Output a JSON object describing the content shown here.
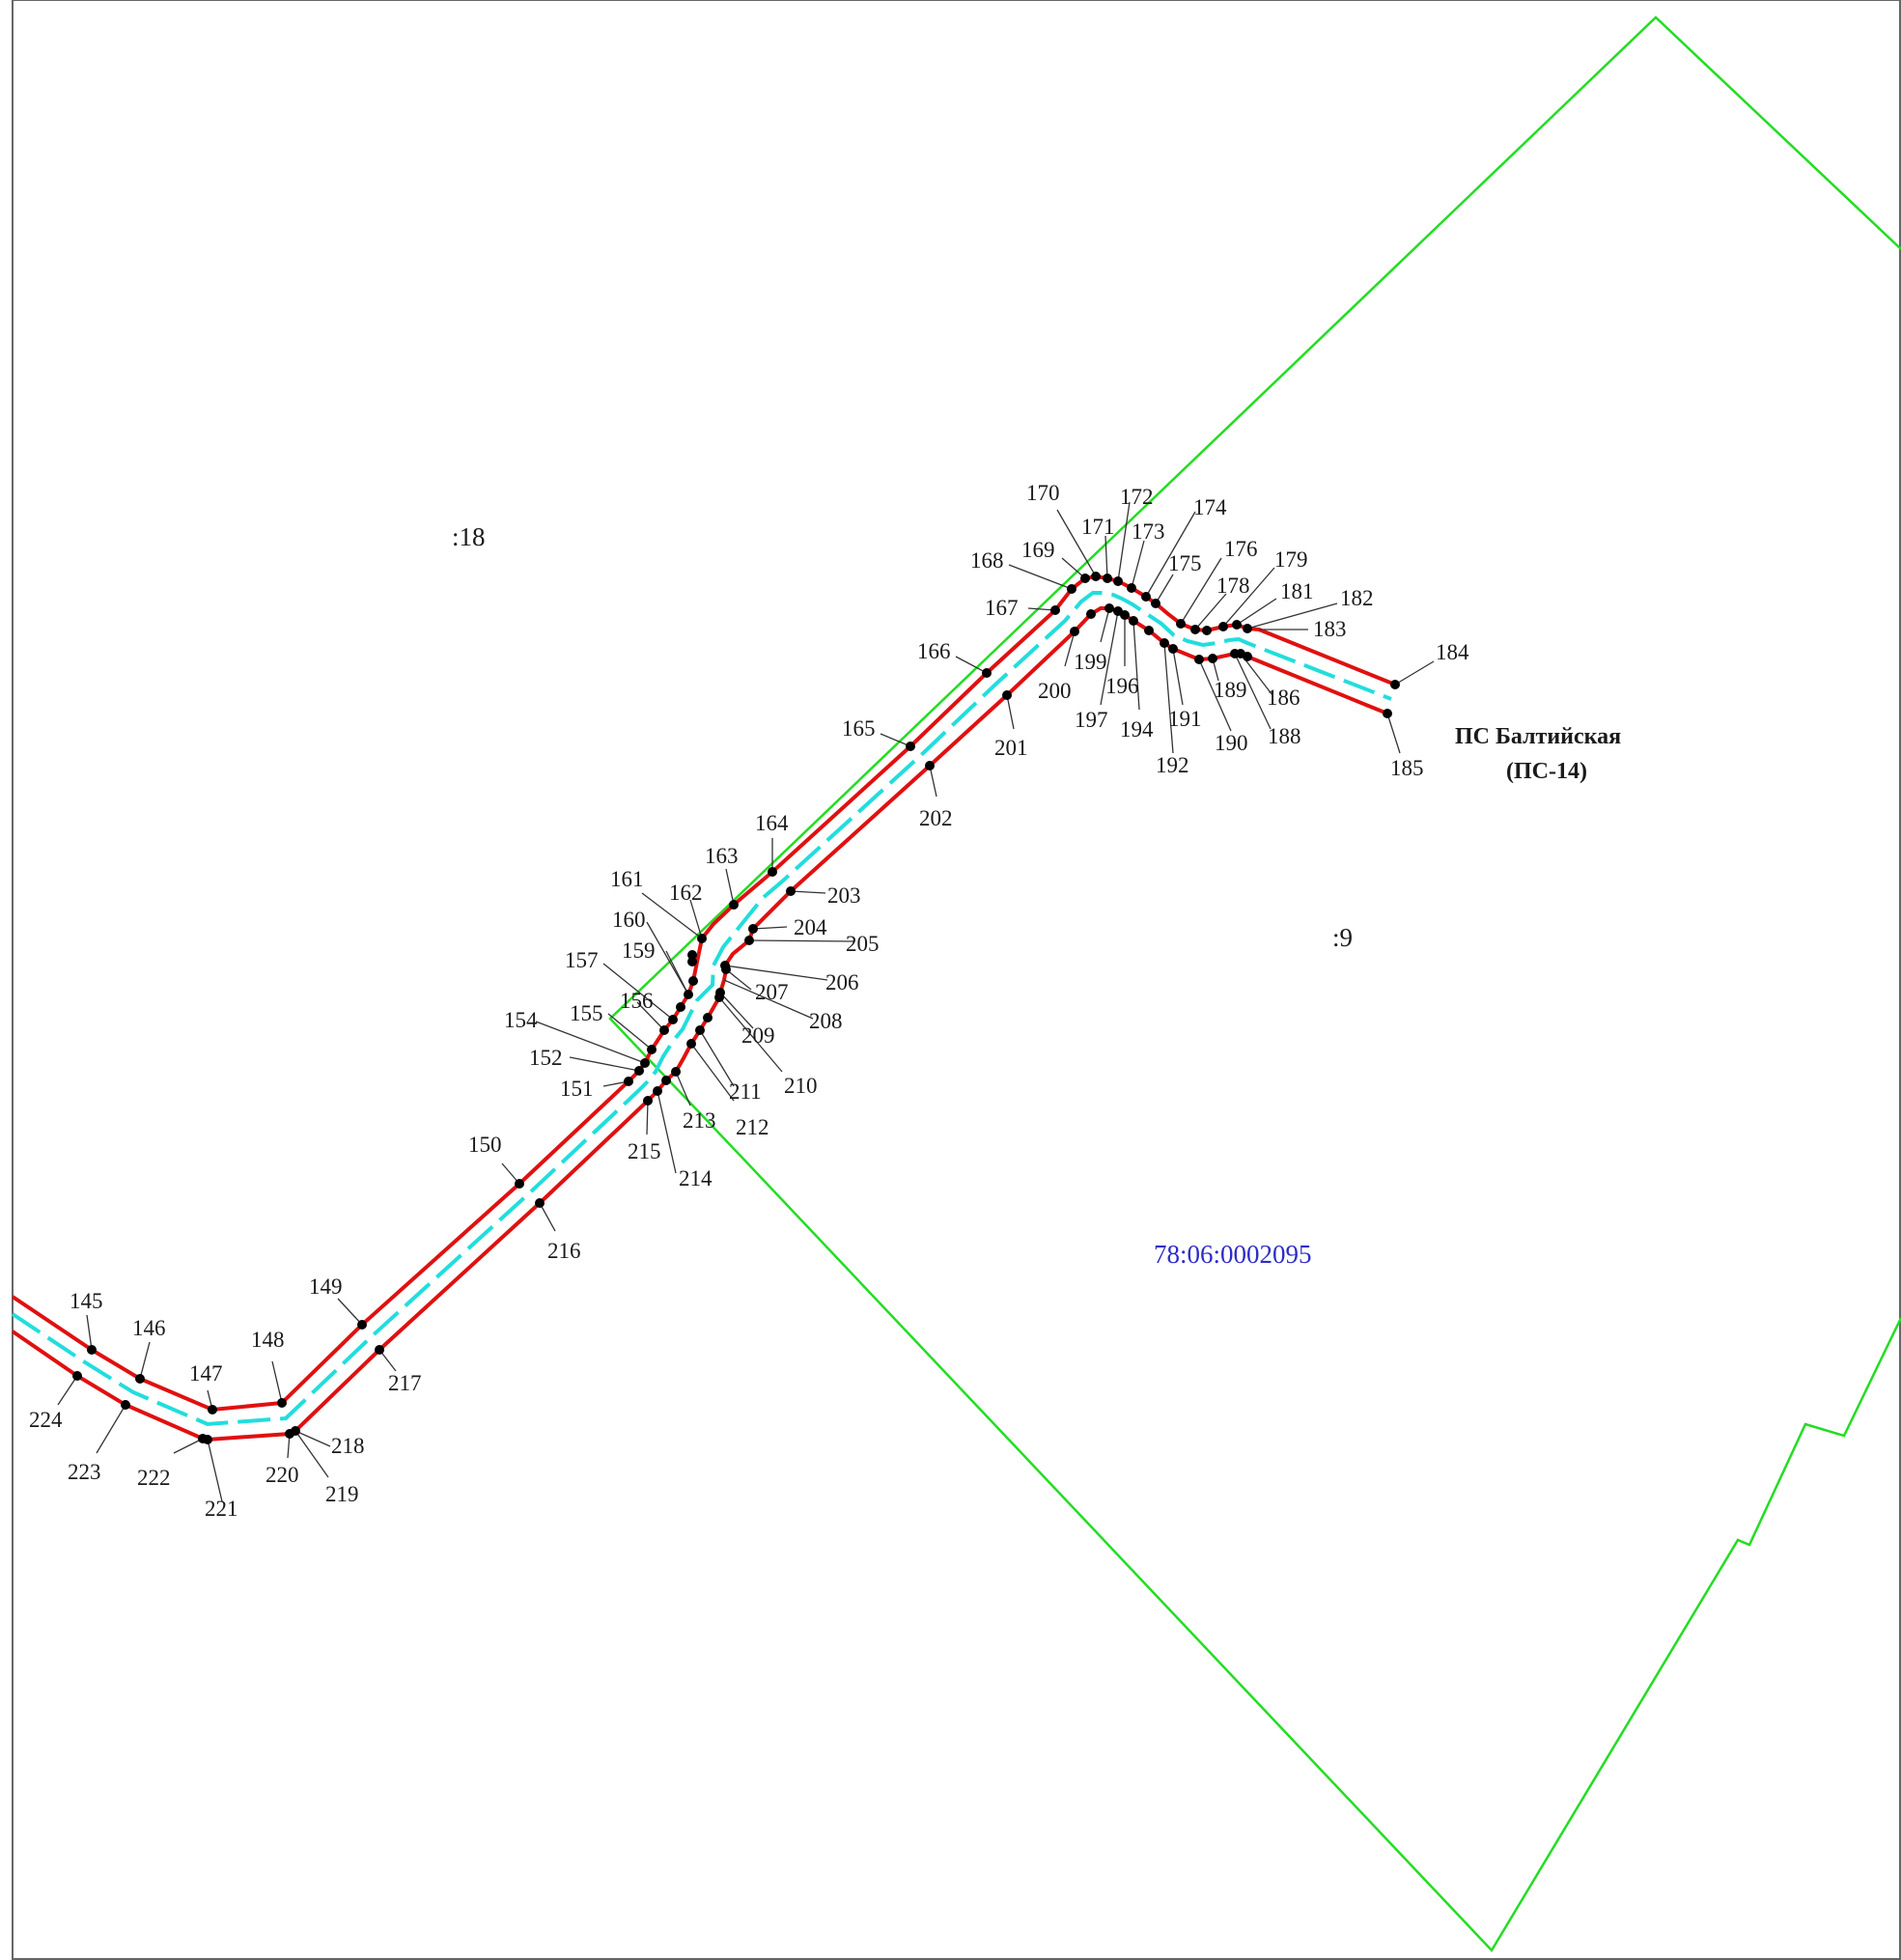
{
  "colors": {
    "parcel_boundary": "#22dd22",
    "corridor_boundary": "#e01010",
    "centerline": "#22dddd",
    "cadastral_number": "#2d2dc8",
    "frame": "#666666"
  },
  "parcels": [
    {
      "id": "p18",
      "label": ":18"
    },
    {
      "id": "p9",
      "label": ":9"
    }
  ],
  "cadastral_quarter": "78:06:0002095",
  "substation": {
    "name": "ПС Балтийская",
    "code": "(ПС-14)"
  },
  "points": [
    "145",
    "146",
    "147",
    "148",
    "149",
    "150",
    "151",
    "152",
    "154",
    "155",
    "156",
    "157",
    "159",
    "160",
    "161",
    "162",
    "163",
    "164",
    "165",
    "166",
    "167",
    "168",
    "169",
    "170",
    "171",
    "172",
    "173",
    "174",
    "175",
    "176",
    "178",
    "179",
    "181",
    "182",
    "183",
    "184",
    "185",
    "186",
    "188",
    "189",
    "190",
    "191",
    "192",
    "194",
    "196",
    "197",
    "199",
    "200",
    "201",
    "202",
    "203",
    "204",
    "205",
    "206",
    "207",
    "208",
    "209",
    "210",
    "211",
    "212",
    "213",
    "214",
    "215",
    "216",
    "217",
    "218",
    "219",
    "220",
    "221",
    "222",
    "223",
    "224"
  ]
}
